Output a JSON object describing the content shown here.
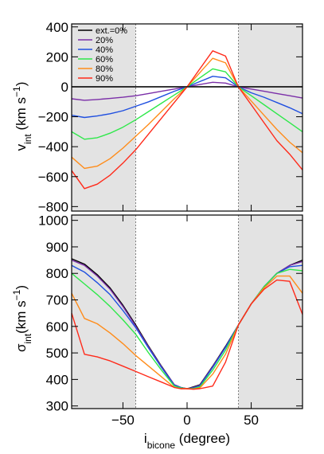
{
  "chart_data": [
    {
      "type": "line",
      "title": "",
      "xlabel": "",
      "ylabel_main": "v",
      "ylabel_sub": "int",
      "ylabel_unit_pre": " (km s",
      "ylabel_unit_sup": "−1",
      "ylabel_unit_post": ")",
      "xlim": [
        -90,
        90
      ],
      "ylim": [
        -830,
        420
      ],
      "yticks": [
        400,
        200,
        0,
        -200,
        -400,
        -600,
        -800
      ],
      "ytick_labels": [
        "400",
        "200",
        "0",
        "−200",
        "−400",
        "−600",
        "−800"
      ],
      "xticks": [
        -50,
        0,
        50
      ],
      "shaded_x_ranges": [
        [
          -90,
          -40
        ],
        [
          40,
          90
        ]
      ],
      "dashed_x": [
        -40,
        40
      ],
      "grid": false,
      "legend_position": "top-left",
      "x": [
        -90,
        -80,
        -70,
        -60,
        -50,
        -40,
        -30,
        -20,
        -10,
        0,
        10,
        20,
        30,
        40,
        50,
        60,
        70,
        80,
        90
      ],
      "series": [
        {
          "name": "ext.=0%",
          "color": "#000000",
          "values": [
            0,
            0,
            0,
            0,
            0,
            0,
            0,
            0,
            0,
            0,
            0,
            0,
            0,
            0,
            0,
            0,
            0,
            0,
            0
          ]
        },
        {
          "name": "20%",
          "color": "#7b2fa8",
          "values": [
            -80,
            -90,
            -85,
            -78,
            -70,
            -60,
            -45,
            -30,
            -15,
            0,
            15,
            30,
            25,
            0,
            -15,
            -30,
            -45,
            -60,
            -75
          ]
        },
        {
          "name": "40%",
          "color": "#1f4fe0",
          "values": [
            -190,
            -205,
            -195,
            -180,
            -160,
            -130,
            -100,
            -65,
            -30,
            0,
            35,
            70,
            60,
            0,
            -40,
            -70,
            -105,
            -140,
            -180
          ]
        },
        {
          "name": "60%",
          "color": "#2ee84a",
          "values": [
            -300,
            -350,
            -340,
            -310,
            -270,
            -220,
            -165,
            -110,
            -55,
            0,
            60,
            120,
            100,
            0,
            -60,
            -120,
            -180,
            -240,
            -300
          ]
        },
        {
          "name": "80%",
          "color": "#ff8c1a",
          "values": [
            -470,
            -545,
            -530,
            -480,
            -410,
            -330,
            -250,
            -165,
            -80,
            0,
            95,
            190,
            160,
            0,
            -95,
            -190,
            -285,
            -370,
            -440
          ]
        },
        {
          "name": "90%",
          "color": "#ff2a1a",
          "values": [
            -560,
            -680,
            -650,
            -590,
            -510,
            -420,
            -315,
            -210,
            -105,
            0,
            120,
            240,
            205,
            0,
            -120,
            -240,
            -360,
            -450,
            -555
          ]
        }
      ]
    },
    {
      "type": "line",
      "title": "",
      "xlabel_main": "i",
      "xlabel_sub": "bicone",
      "xlabel_unit": " (degree)",
      "ylabel_main": "σ",
      "ylabel_sub": "int",
      "ylabel_unit_pre": "(km s",
      "ylabel_unit_sup": "−1",
      "ylabel_unit_post": ")",
      "xlim": [
        -90,
        90
      ],
      "ylim": [
        290,
        1020
      ],
      "yticks": [
        1000,
        900,
        800,
        700,
        600,
        500,
        400,
        300
      ],
      "ytick_labels": [
        "1000",
        "900",
        "800",
        "700",
        "600",
        "500",
        "400",
        "300"
      ],
      "xticks": [
        -50,
        0,
        50
      ],
      "xtick_labels": [
        "−50",
        "0",
        "50"
      ],
      "shaded_x_ranges": [
        [
          -90,
          -40
        ],
        [
          40,
          90
        ]
      ],
      "dashed_x": [
        -40,
        40
      ],
      "grid": false,
      "x": [
        -90,
        -80,
        -70,
        -60,
        -50,
        -40,
        -30,
        -20,
        -10,
        -5,
        0,
        5,
        10,
        20,
        30,
        40,
        50,
        60,
        70,
        80,
        90
      ],
      "series": [
        {
          "name": "ext.=0%",
          "color": "#000000",
          "values": [
            855,
            835,
            795,
            745,
            680,
            605,
            525,
            450,
            380,
            370,
            365,
            372,
            380,
            450,
            525,
            605,
            685,
            750,
            800,
            830,
            850
          ]
        },
        {
          "name": "20%",
          "color": "#7b2fa8",
          "values": [
            850,
            830,
            790,
            740,
            675,
            600,
            522,
            448,
            380,
            370,
            365,
            370,
            378,
            448,
            522,
            605,
            685,
            750,
            800,
            830,
            845
          ]
        },
        {
          "name": "40%",
          "color": "#1f4fe0",
          "values": [
            830,
            805,
            765,
            720,
            660,
            595,
            518,
            445,
            378,
            370,
            365,
            368,
            376,
            445,
            520,
            605,
            685,
            750,
            800,
            825,
            830
          ]
        },
        {
          "name": "60%",
          "color": "#2ee84a",
          "values": [
            800,
            760,
            720,
            675,
            625,
            570,
            500,
            435,
            375,
            368,
            365,
            366,
            372,
            435,
            510,
            605,
            685,
            750,
            800,
            815,
            810
          ]
        },
        {
          "name": "80%",
          "color": "#ff8c1a",
          "values": [
            725,
            630,
            610,
            575,
            535,
            490,
            450,
            410,
            370,
            365,
            365,
            364,
            368,
            420,
            495,
            605,
            685,
            745,
            790,
            790,
            725
          ]
        },
        {
          "name": "90%",
          "color": "#ff2a1a",
          "values": [
            650,
            495,
            485,
            470,
            450,
            430,
            410,
            390,
            370,
            365,
            365,
            363,
            365,
            375,
            465,
            605,
            685,
            740,
            775,
            770,
            645
          ]
        }
      ]
    }
  ],
  "legend": {
    "items": [
      "ext.=0%",
      "20%",
      "40%",
      "60%",
      "80%",
      "90%"
    ]
  }
}
